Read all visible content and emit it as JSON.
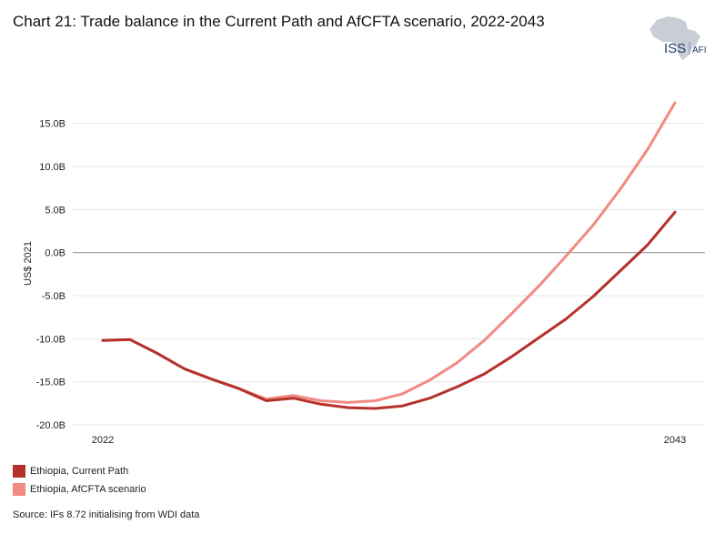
{
  "title": "Chart 21: Trade balance in the Current Path and AfCFTA scenario, 2022-2043",
  "logo": {
    "text_main": "ISS",
    "text_sub": "AFI",
    "icon": "africa-map-icon"
  },
  "source": "Source: IFs 8.72 initialising from WDI data",
  "colors": {
    "current_path": "#b5312b",
    "afcfta": "#f08a82",
    "zero_line": "#9a9a9a",
    "grid": "#e6e6e6"
  },
  "chart_data": {
    "type": "line",
    "title": "Chart 21: Trade balance in the Current Path and AfCFTA scenario, 2022-2043",
    "ylabel": "US$ 2021",
    "xlabel": "",
    "xlim": [
      2022,
      2043
    ],
    "ylim": [
      -20,
      17.5
    ],
    "x_tick_labels": [
      "2022",
      "2043"
    ],
    "y_ticks": [
      15,
      10,
      5,
      0,
      -5,
      -10,
      -15,
      -20
    ],
    "y_tick_labels": [
      "15.0B",
      "10.0B",
      "5.0B",
      "0.0B",
      "-5.0B",
      "-10.0B",
      "-15.0B",
      "-20.0B"
    ],
    "grid": true,
    "legend_position": "bottom-left",
    "x": [
      2022,
      2023,
      2024,
      2025,
      2026,
      2027,
      2028,
      2029,
      2030,
      2031,
      2032,
      2033,
      2034,
      2035,
      2036,
      2037,
      2038,
      2039,
      2040,
      2041,
      2042,
      2043
    ],
    "series": [
      {
        "name": "Ethiopia, Current Path",
        "values": [
          -10.2,
          -10.1,
          -11.7,
          -13.5,
          -14.7,
          -15.8,
          -17.2,
          -16.9,
          -17.6,
          -18.0,
          -18.1,
          -17.8,
          -16.9,
          -15.6,
          -14.1,
          -12.1,
          -9.9,
          -7.7,
          -5.1,
          -2.1,
          0.9,
          4.7
        ]
      },
      {
        "name": "Ethiopia, AfCFTA scenario",
        "values": [
          -10.2,
          -10.1,
          -11.7,
          -13.5,
          -14.7,
          -15.8,
          -17.0,
          -16.6,
          -17.2,
          -17.4,
          -17.2,
          -16.4,
          -14.8,
          -12.8,
          -10.2,
          -7.1,
          -3.9,
          -0.4,
          3.2,
          7.4,
          12.0,
          17.4
        ]
      }
    ]
  }
}
